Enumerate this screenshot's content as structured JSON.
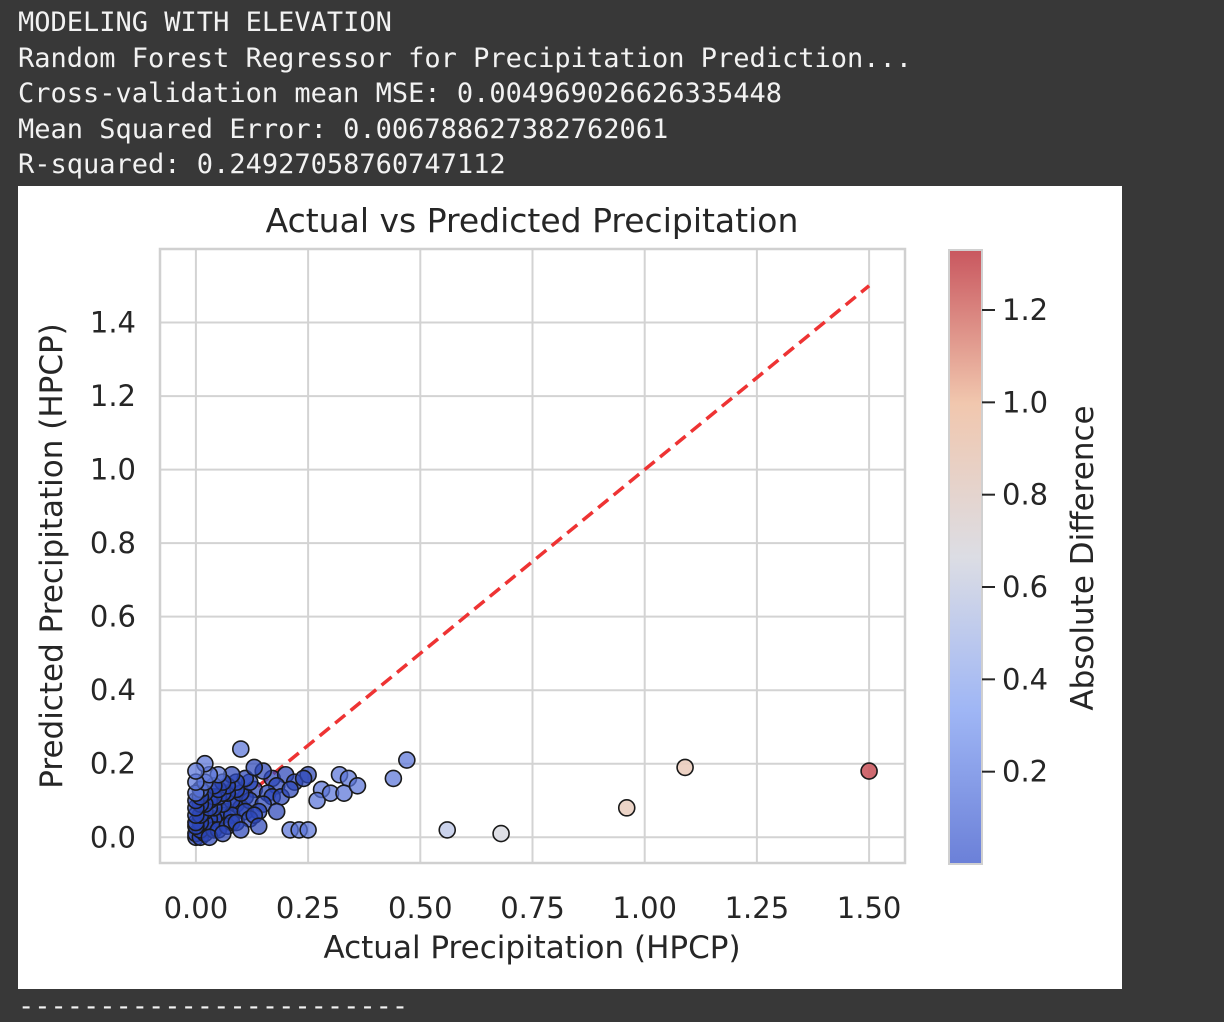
{
  "output": {
    "lines": [
      "MODELING WITH ELEVATION",
      "Random Forest Regressor for Precipitation Prediction...",
      "Cross-validation mean MSE: 0.004969026626335448",
      "Mean Squared Error: 0.006788627382762061",
      "R-squared: 0.24927058760747112"
    ],
    "separator": "------------------------"
  },
  "chart_data": {
    "type": "scatter",
    "title": "Actual vs Predicted Precipitation",
    "xlabel": "Actual Precipitation (HPCP)",
    "ylabel": "Predicted Precipitation (HPCP)",
    "xlim": [
      -0.08,
      1.58
    ],
    "ylim": [
      -0.07,
      1.6
    ],
    "xticks": [
      "0.00",
      "0.25",
      "0.50",
      "0.75",
      "1.00",
      "1.25",
      "1.50"
    ],
    "yticks": [
      "0.0",
      "0.2",
      "0.4",
      "0.6",
      "0.8",
      "1.0",
      "1.2",
      "1.4"
    ],
    "grid": true,
    "reference_line": {
      "from": [
        0,
        0
      ],
      "to": [
        1.5,
        1.5
      ],
      "color": "#ee3333",
      "style": "dashed"
    },
    "colorbar": {
      "label": "Absolute Difference",
      "range": [
        0.0,
        1.33
      ],
      "ticks": [
        "0.2",
        "0.4",
        "0.6",
        "0.8",
        "1.0",
        "1.2"
      ],
      "colormap": [
        "#6b80d8",
        "#9fb6f5",
        "#dcdde4",
        "#f1c7ae",
        "#c9575f"
      ]
    },
    "points": [
      {
        "x": 1.5,
        "y": 0.18,
        "c": 1.32
      },
      {
        "x": 1.09,
        "y": 0.19,
        "c": 0.9
      },
      {
        "x": 0.96,
        "y": 0.08,
        "c": 0.88
      },
      {
        "x": 0.68,
        "y": 0.01,
        "c": 0.67
      },
      {
        "x": 0.56,
        "y": 0.02,
        "c": 0.54
      },
      {
        "x": 0.47,
        "y": 0.21,
        "c": 0.26
      },
      {
        "x": 0.44,
        "y": 0.16,
        "c": 0.28
      },
      {
        "x": 0.36,
        "y": 0.14,
        "c": 0.22
      },
      {
        "x": 0.34,
        "y": 0.16,
        "c": 0.18
      },
      {
        "x": 0.33,
        "y": 0.12,
        "c": 0.21
      },
      {
        "x": 0.32,
        "y": 0.17,
        "c": 0.15
      },
      {
        "x": 0.3,
        "y": 0.12,
        "c": 0.18
      },
      {
        "x": 0.28,
        "y": 0.13,
        "c": 0.15
      },
      {
        "x": 0.27,
        "y": 0.1,
        "c": 0.17
      },
      {
        "x": 0.25,
        "y": 0.02,
        "c": 0.23
      },
      {
        "x": 0.23,
        "y": 0.02,
        "c": 0.21
      },
      {
        "x": 0.21,
        "y": 0.02,
        "c": 0.19
      },
      {
        "x": 0.25,
        "y": 0.17,
        "c": 0.08
      },
      {
        "x": 0.22,
        "y": 0.15,
        "c": 0.07
      },
      {
        "x": 0.2,
        "y": 0.17,
        "c": 0.03
      },
      {
        "x": 0.18,
        "y": 0.14,
        "c": 0.04
      },
      {
        "x": 0.17,
        "y": 0.11,
        "c": 0.06
      },
      {
        "x": 0.15,
        "y": 0.09,
        "c": 0.06
      },
      {
        "x": 0.15,
        "y": 0.18,
        "c": 0.03
      },
      {
        "x": 0.14,
        "y": 0.07,
        "c": 0.07
      },
      {
        "x": 0.13,
        "y": 0.13,
        "c": 0.0
      },
      {
        "x": 0.13,
        "y": 0.19,
        "c": 0.06
      },
      {
        "x": 0.12,
        "y": 0.05,
        "c": 0.07
      },
      {
        "x": 0.11,
        "y": 0.16,
        "c": 0.05
      },
      {
        "x": 0.11,
        "y": 0.11,
        "c": 0.0
      },
      {
        "x": 0.1,
        "y": 0.08,
        "c": 0.02
      },
      {
        "x": 0.1,
        "y": 0.02,
        "c": 0.08
      },
      {
        "x": 0.09,
        "y": 0.13,
        "c": 0.04
      },
      {
        "x": 0.09,
        "y": 0.04,
        "c": 0.05
      },
      {
        "x": 0.1,
        "y": 0.24,
        "c": 0.14
      },
      {
        "x": 0.08,
        "y": 0.17,
        "c": 0.09
      },
      {
        "x": 0.08,
        "y": 0.1,
        "c": 0.02
      },
      {
        "x": 0.07,
        "y": 0.03,
        "c": 0.04
      },
      {
        "x": 0.07,
        "y": 0.12,
        "c": 0.05
      },
      {
        "x": 0.06,
        "y": 0.15,
        "c": 0.09
      },
      {
        "x": 0.06,
        "y": 0.06,
        "c": 0.0
      },
      {
        "x": 0.05,
        "y": 0.02,
        "c": 0.03
      },
      {
        "x": 0.05,
        "y": 0.11,
        "c": 0.06
      },
      {
        "x": 0.04,
        "y": 0.08,
        "c": 0.04
      },
      {
        "x": 0.04,
        "y": 0.14,
        "c": 0.1
      },
      {
        "x": 0.03,
        "y": 0.05,
        "c": 0.02
      },
      {
        "x": 0.03,
        "y": 0.1,
        "c": 0.07
      },
      {
        "x": 0.03,
        "y": 0.17,
        "c": 0.14
      },
      {
        "x": 0.02,
        "y": 0.02,
        "c": 0.0
      },
      {
        "x": 0.02,
        "y": 0.07,
        "c": 0.05
      },
      {
        "x": 0.02,
        "y": 0.12,
        "c": 0.1
      },
      {
        "x": 0.02,
        "y": 0.2,
        "c": 0.18
      },
      {
        "x": 0.01,
        "y": 0.04,
        "c": 0.03
      },
      {
        "x": 0.01,
        "y": 0.09,
        "c": 0.08
      },
      {
        "x": 0.01,
        "y": 0.13,
        "c": 0.12
      },
      {
        "x": 0.0,
        "y": 0.18,
        "c": 0.18
      },
      {
        "x": 0.0,
        "y": 0.15,
        "c": 0.15
      },
      {
        "x": 0.0,
        "y": 0.1,
        "c": 0.1
      },
      {
        "x": 0.0,
        "y": 0.06,
        "c": 0.06
      },
      {
        "x": 0.0,
        "y": 0.03,
        "c": 0.03
      },
      {
        "x": 0.0,
        "y": 0.01,
        "c": 0.01
      },
      {
        "x": 0.0,
        "y": 0.0,
        "c": 0.0
      },
      {
        "x": 0.01,
        "y": 0.0,
        "c": 0.01
      },
      {
        "x": 0.02,
        "y": 0.01,
        "c": 0.01
      },
      {
        "x": 0.03,
        "y": 0.0,
        "c": 0.03
      },
      {
        "x": 0.04,
        "y": 0.02,
        "c": 0.02
      },
      {
        "x": 0.05,
        "y": 0.05,
        "c": 0.0
      },
      {
        "x": 0.06,
        "y": 0.01,
        "c": 0.05
      },
      {
        "x": 0.07,
        "y": 0.07,
        "c": 0.0
      },
      {
        "x": 0.08,
        "y": 0.04,
        "c": 0.04
      },
      {
        "x": 0.09,
        "y": 0.09,
        "c": 0.0
      },
      {
        "x": 0.12,
        "y": 0.1,
        "c": 0.02
      },
      {
        "x": 0.14,
        "y": 0.03,
        "c": 0.11
      },
      {
        "x": 0.16,
        "y": 0.12,
        "c": 0.04
      },
      {
        "x": 0.18,
        "y": 0.07,
        "c": 0.11
      },
      {
        "x": 0.19,
        "y": 0.11,
        "c": 0.08
      },
      {
        "x": 0.01,
        "y": 0.06,
        "c": 0.05
      },
      {
        "x": 0.02,
        "y": 0.04,
        "c": 0.02
      },
      {
        "x": 0.0,
        "y": 0.08,
        "c": 0.08
      },
      {
        "x": 0.01,
        "y": 0.11,
        "c": 0.1
      },
      {
        "x": 0.03,
        "y": 0.08,
        "c": 0.05
      },
      {
        "x": 0.04,
        "y": 0.11,
        "c": 0.07
      },
      {
        "x": 0.05,
        "y": 0.13,
        "c": 0.08
      },
      {
        "x": 0.06,
        "y": 0.09,
        "c": 0.03
      },
      {
        "x": 0.07,
        "y": 0.14,
        "c": 0.07
      },
      {
        "x": 0.04,
        "y": 0.05,
        "c": 0.01
      },
      {
        "x": 0.02,
        "y": 0.15,
        "c": 0.13
      },
      {
        "x": 0.05,
        "y": 0.17,
        "c": 0.12
      },
      {
        "x": 0.08,
        "y": 0.06,
        "c": 0.02
      },
      {
        "x": 0.11,
        "y": 0.07,
        "c": 0.04
      },
      {
        "x": 0.12,
        "y": 0.15,
        "c": 0.03
      },
      {
        "x": 0.1,
        "y": 0.12,
        "c": 0.02
      },
      {
        "x": 0.0,
        "y": 0.12,
        "c": 0.12
      },
      {
        "x": 0.0,
        "y": 0.04,
        "c": 0.04
      },
      {
        "x": 0.01,
        "y": 0.02,
        "c": 0.01
      },
      {
        "x": 0.03,
        "y": 0.03,
        "c": 0.0
      },
      {
        "x": 0.02,
        "y": 0.09,
        "c": 0.07
      },
      {
        "x": 0.06,
        "y": 0.12,
        "c": 0.06
      },
      {
        "x": 0.09,
        "y": 0.15,
        "c": 0.06
      },
      {
        "x": 0.13,
        "y": 0.06,
        "c": 0.07
      },
      {
        "x": 0.17,
        "y": 0.16,
        "c": 0.01
      },
      {
        "x": 0.21,
        "y": 0.13,
        "c": 0.08
      },
      {
        "x": 0.24,
        "y": 0.16,
        "c": 0.08
      }
    ]
  }
}
